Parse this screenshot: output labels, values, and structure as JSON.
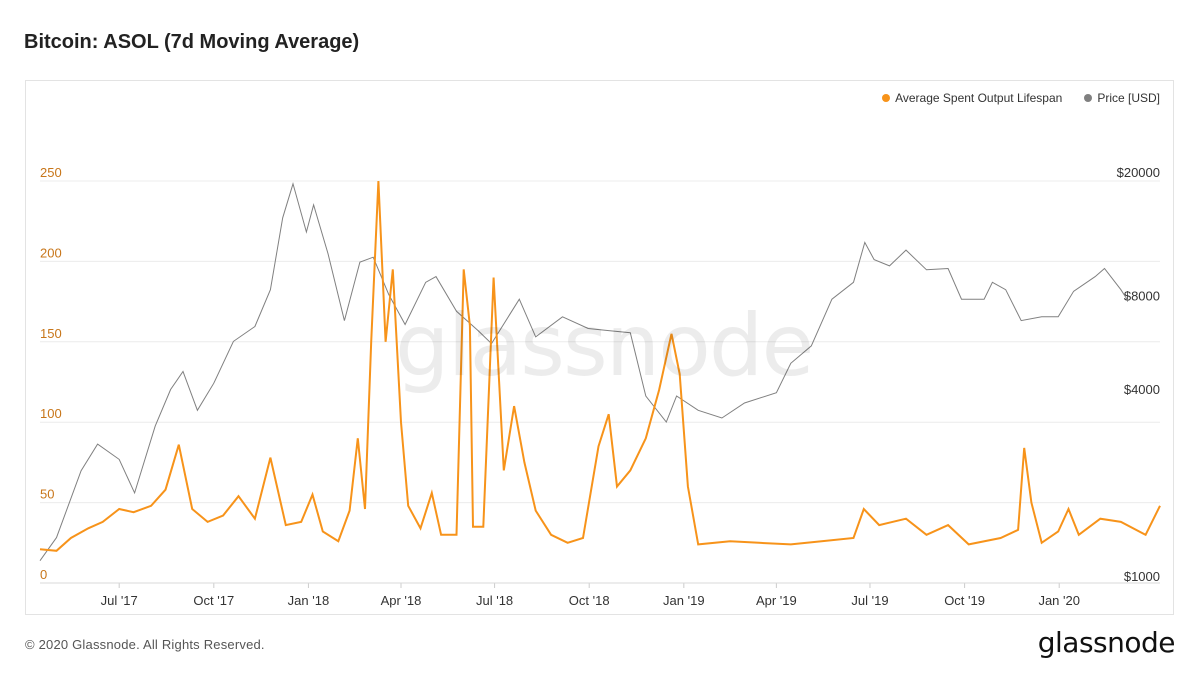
{
  "title": "Bitcoin: ASOL (7d Moving Average)",
  "footer": "© 2020 Glassnode. All Rights Reserved.",
  "brand": "glassnode",
  "watermark": "glassnode",
  "colors": {
    "asol": "#f7931a",
    "price": "#808080",
    "grid": "#ececec",
    "left_axis": "#c8761a",
    "right_axis": "#333333"
  },
  "chart_data": {
    "type": "line",
    "title": "Bitcoin: ASOL (7d Moving Average)",
    "legend_position": "top-right",
    "grid": true,
    "x_range": [
      "2017-04-15",
      "2020-04-08"
    ],
    "x_ticks": [
      "Jul '17",
      "Oct '17",
      "Jan '18",
      "Apr '18",
      "Jul '18",
      "Oct '18",
      "Jan '19",
      "Apr '19",
      "Jul '19",
      "Oct '19",
      "Jan '20"
    ],
    "y_left": {
      "ticks": [
        "0",
        "50",
        "100",
        "150",
        "200",
        "250"
      ],
      "range": [
        0,
        250
      ]
    },
    "y_right": {
      "scale": "log",
      "ticks": [
        "$1000",
        "$4000",
        "$8000",
        "$20000"
      ],
      "tick_values": [
        1000,
        4000,
        8000,
        20000
      ],
      "range": [
        1000,
        20000
      ]
    },
    "series": [
      {
        "name": "Average Spent Output Lifespan",
        "axis": "left",
        "points": [
          [
            "2017-04-15",
            21
          ],
          [
            "2017-05-01",
            20
          ],
          [
            "2017-05-15",
            28
          ],
          [
            "2017-06-01",
            34
          ],
          [
            "2017-06-15",
            38
          ],
          [
            "2017-07-01",
            46
          ],
          [
            "2017-07-15",
            44
          ],
          [
            "2017-08-01",
            48
          ],
          [
            "2017-08-15",
            58
          ],
          [
            "2017-08-28",
            86
          ],
          [
            "2017-09-10",
            46
          ],
          [
            "2017-09-25",
            38
          ],
          [
            "2017-10-10",
            42
          ],
          [
            "2017-10-25",
            54
          ],
          [
            "2017-11-10",
            40
          ],
          [
            "2017-11-25",
            78
          ],
          [
            "2017-12-10",
            36
          ],
          [
            "2017-12-25",
            38
          ],
          [
            "2018-01-05",
            55
          ],
          [
            "2018-01-15",
            32
          ],
          [
            "2018-01-30",
            26
          ],
          [
            "2018-02-10",
            45
          ],
          [
            "2018-02-18",
            90
          ],
          [
            "2018-02-25",
            46
          ],
          [
            "2018-03-03",
            150
          ],
          [
            "2018-03-10",
            250
          ],
          [
            "2018-03-17",
            150
          ],
          [
            "2018-03-24",
            195
          ],
          [
            "2018-04-01",
            100
          ],
          [
            "2018-04-08",
            48
          ],
          [
            "2018-04-20",
            34
          ],
          [
            "2018-05-01",
            56
          ],
          [
            "2018-05-10",
            30
          ],
          [
            "2018-05-25",
            30
          ],
          [
            "2018-06-01",
            195
          ],
          [
            "2018-06-07",
            160
          ],
          [
            "2018-06-10",
            35
          ],
          [
            "2018-06-20",
            35
          ],
          [
            "2018-06-30",
            190
          ],
          [
            "2018-07-10",
            70
          ],
          [
            "2018-07-20",
            110
          ],
          [
            "2018-07-30",
            75
          ],
          [
            "2018-08-10",
            45
          ],
          [
            "2018-08-25",
            30
          ],
          [
            "2018-09-10",
            25
          ],
          [
            "2018-09-25",
            28
          ],
          [
            "2018-10-10",
            85
          ],
          [
            "2018-10-20",
            105
          ],
          [
            "2018-10-28",
            60
          ],
          [
            "2018-11-10",
            70
          ],
          [
            "2018-11-25",
            90
          ],
          [
            "2018-12-08",
            120
          ],
          [
            "2018-12-20",
            155
          ],
          [
            "2018-12-28",
            130
          ],
          [
            "2019-01-05",
            60
          ],
          [
            "2019-01-15",
            24
          ],
          [
            "2019-02-15",
            26
          ],
          [
            "2019-03-15",
            25
          ],
          [
            "2019-04-15",
            24
          ],
          [
            "2019-05-15",
            26
          ],
          [
            "2019-06-15",
            28
          ],
          [
            "2019-06-25",
            46
          ],
          [
            "2019-07-10",
            36
          ],
          [
            "2019-08-05",
            40
          ],
          [
            "2019-08-25",
            30
          ],
          [
            "2019-09-15",
            36
          ],
          [
            "2019-10-05",
            24
          ],
          [
            "2019-11-05",
            28
          ],
          [
            "2019-11-22",
            33
          ],
          [
            "2019-11-28",
            84
          ],
          [
            "2019-12-05",
            50
          ],
          [
            "2019-12-15",
            25
          ],
          [
            "2019-12-31",
            32
          ],
          [
            "2020-01-10",
            46
          ],
          [
            "2020-01-20",
            30
          ],
          [
            "2020-02-10",
            40
          ],
          [
            "2020-03-01",
            38
          ],
          [
            "2020-03-25",
            30
          ],
          [
            "2020-04-08",
            48
          ]
        ]
      },
      {
        "name": "Price [USD]",
        "axis": "right",
        "points": [
          [
            "2017-04-15",
            1180
          ],
          [
            "2017-05-01",
            1400
          ],
          [
            "2017-05-25",
            2300
          ],
          [
            "2017-06-10",
            2800
          ],
          [
            "2017-07-01",
            2500
          ],
          [
            "2017-07-16",
            1950
          ],
          [
            "2017-08-05",
            3200
          ],
          [
            "2017-08-20",
            4200
          ],
          [
            "2017-09-01",
            4800
          ],
          [
            "2017-09-15",
            3600
          ],
          [
            "2017-10-01",
            4400
          ],
          [
            "2017-10-20",
            6000
          ],
          [
            "2017-11-10",
            6700
          ],
          [
            "2017-11-25",
            8800
          ],
          [
            "2017-12-07",
            15000
          ],
          [
            "2017-12-17",
            19300
          ],
          [
            "2017-12-30",
            13500
          ],
          [
            "2018-01-06",
            16500
          ],
          [
            "2018-01-20",
            11500
          ],
          [
            "2018-02-05",
            7000
          ],
          [
            "2018-02-20",
            10800
          ],
          [
            "2018-03-05",
            11200
          ],
          [
            "2018-03-20",
            8500
          ],
          [
            "2018-04-05",
            6800
          ],
          [
            "2018-04-25",
            9300
          ],
          [
            "2018-05-05",
            9700
          ],
          [
            "2018-05-25",
            7500
          ],
          [
            "2018-06-15",
            6500
          ],
          [
            "2018-06-28",
            5900
          ],
          [
            "2018-07-25",
            8200
          ],
          [
            "2018-08-10",
            6200
          ],
          [
            "2018-09-05",
            7200
          ],
          [
            "2018-09-30",
            6600
          ],
          [
            "2018-10-20",
            6500
          ],
          [
            "2018-11-10",
            6400
          ],
          [
            "2018-11-25",
            4000
          ],
          [
            "2018-12-15",
            3300
          ],
          [
            "2018-12-25",
            4000
          ],
          [
            "2019-01-15",
            3600
          ],
          [
            "2019-02-07",
            3400
          ],
          [
            "2019-03-01",
            3800
          ],
          [
            "2019-04-01",
            4100
          ],
          [
            "2019-04-15",
            5100
          ],
          [
            "2019-05-05",
            5800
          ],
          [
            "2019-05-25",
            8200
          ],
          [
            "2019-06-15",
            9300
          ],
          [
            "2019-06-26",
            12500
          ],
          [
            "2019-07-05",
            11000
          ],
          [
            "2019-07-20",
            10500
          ],
          [
            "2019-08-05",
            11800
          ],
          [
            "2019-08-25",
            10200
          ],
          [
            "2019-09-15",
            10300
          ],
          [
            "2019-09-28",
            8200
          ],
          [
            "2019-10-20",
            8200
          ],
          [
            "2019-10-28",
            9300
          ],
          [
            "2019-11-10",
            8800
          ],
          [
            "2019-11-25",
            7000
          ],
          [
            "2019-12-15",
            7200
          ],
          [
            "2019-12-31",
            7200
          ],
          [
            "2020-01-15",
            8700
          ],
          [
            "2020-02-05",
            9700
          ],
          [
            "2020-02-14",
            10300
          ],
          [
            "2020-03-01",
            8800
          ],
          [
            "2020-03-08",
            8100
          ]
        ]
      }
    ]
  }
}
